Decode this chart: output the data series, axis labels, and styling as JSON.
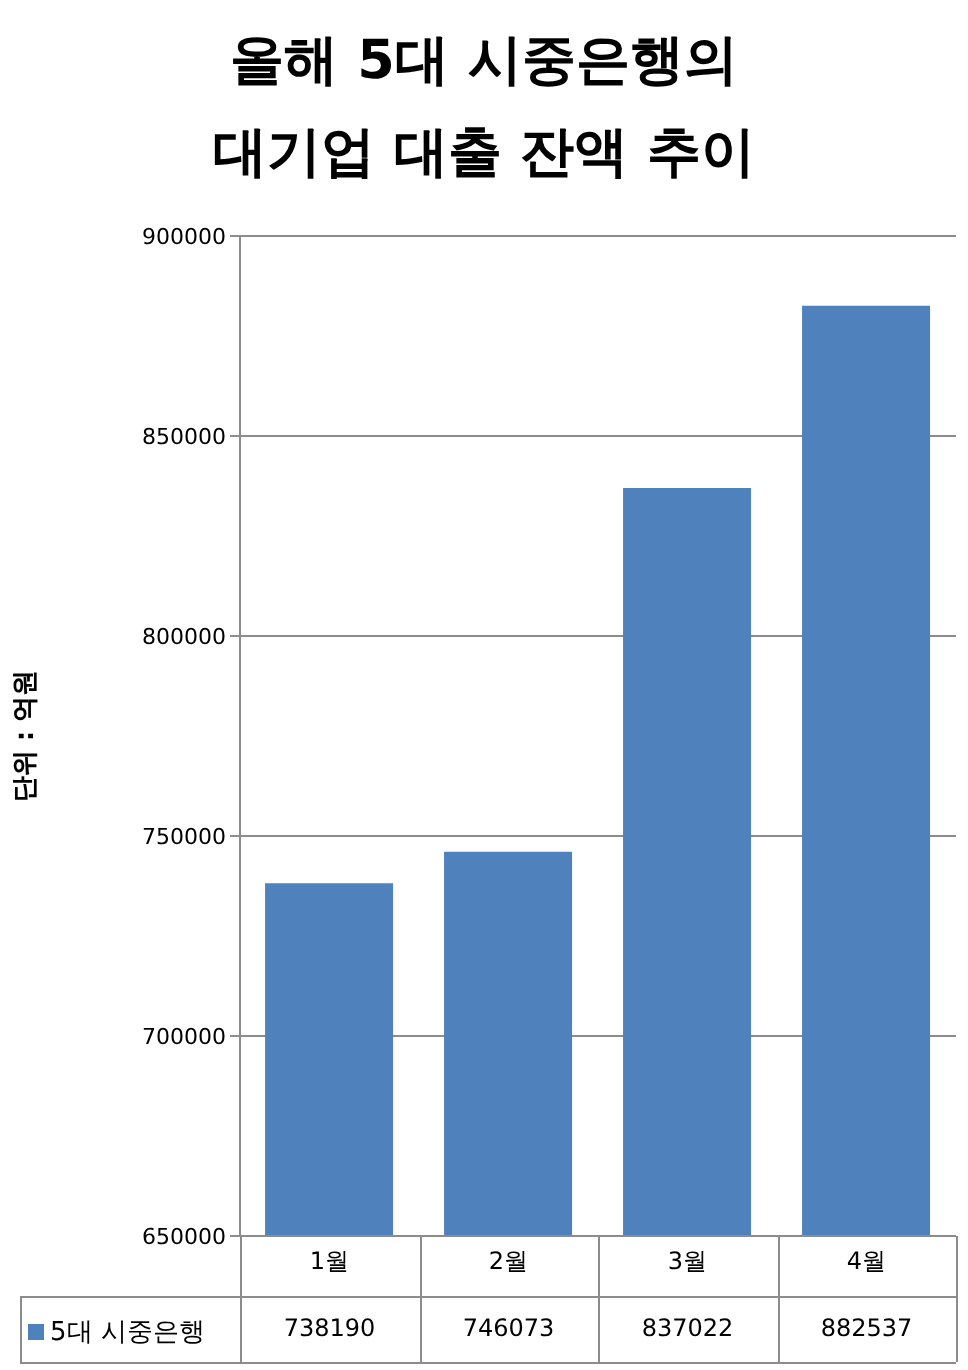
{
  "chart_data": {
    "type": "bar",
    "title": "올해 5대 시중은행의\n대기업 대출 잔액 추이",
    "ylabel": "단위 : 억원",
    "categories": [
      "1월",
      "2월",
      "3월",
      "4월"
    ],
    "series": [
      {
        "name": "5대 시중은행",
        "color": "#4f81bd",
        "values": [
          738190,
          746073,
          837022,
          882537
        ]
      }
    ],
    "ylim": [
      650000,
      900000
    ],
    "yticks": [
      650000,
      700000,
      750000,
      800000,
      850000,
      900000
    ],
    "grid": "y",
    "legend": "bottom",
    "data_labels": true
  }
}
